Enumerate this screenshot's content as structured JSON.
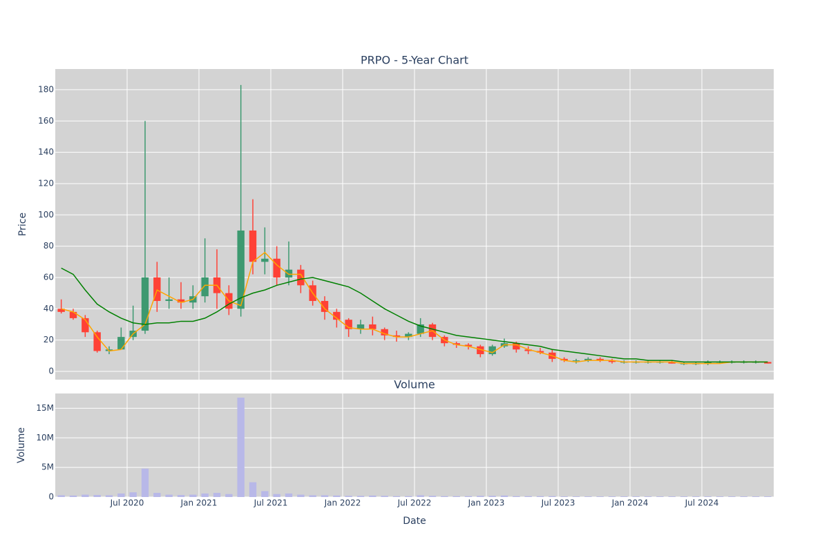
{
  "chart_data": [
    {
      "type": "candlestick",
      "title": "PRPO - 5-Year Chart",
      "y_label": "Price",
      "x": [
        "2020-01",
        "2020-02",
        "2020-03",
        "2020-04",
        "2020-05",
        "2020-06",
        "2020-07",
        "2020-08",
        "2020-09",
        "2020-10",
        "2020-11",
        "2020-12",
        "2021-01",
        "2021-02",
        "2021-03",
        "2021-04",
        "2021-05",
        "2021-06",
        "2021-07",
        "2021-08",
        "2021-09",
        "2021-10",
        "2021-11",
        "2021-12",
        "2022-01",
        "2022-02",
        "2022-03",
        "2022-04",
        "2022-05",
        "2022-06",
        "2022-07",
        "2022-08",
        "2022-09",
        "2022-10",
        "2022-11",
        "2022-12",
        "2023-01",
        "2023-02",
        "2023-03",
        "2023-04",
        "2023-05",
        "2023-06",
        "2023-07",
        "2023-08",
        "2023-09",
        "2023-10",
        "2023-11",
        "2023-12",
        "2024-01",
        "2024-02",
        "2024-03",
        "2024-04",
        "2024-05",
        "2024-06",
        "2024-07",
        "2024-08",
        "2024-09",
        "2024-10",
        "2024-11",
        "2024-12"
      ],
      "open": [
        40,
        38,
        34,
        25,
        13,
        14,
        22,
        26,
        60,
        45,
        46,
        44,
        48,
        60,
        50,
        40,
        90,
        70,
        72,
        60,
        65,
        55,
        45,
        38,
        33,
        27,
        30,
        27,
        23,
        22,
        24,
        30,
        22,
        18,
        17,
        16,
        11,
        16,
        18,
        14,
        13,
        12,
        8,
        7,
        7,
        8,
        7,
        6,
        6,
        6,
        6,
        6,
        5,
        5,
        5,
        6,
        6,
        6,
        6,
        6
      ],
      "high": [
        46,
        40,
        36,
        26,
        16,
        28,
        42,
        160,
        70,
        60,
        57,
        55,
        85,
        78,
        55,
        183,
        110,
        92,
        80,
        83,
        68,
        58,
        48,
        40,
        34,
        33,
        35,
        28,
        26,
        25,
        34,
        31,
        23,
        19,
        18,
        17,
        17,
        21,
        19,
        16,
        15,
        14,
        9,
        8,
        9,
        9,
        8,
        7,
        7,
        7,
        7,
        7,
        6,
        6,
        7,
        7,
        7,
        7,
        7,
        6
      ],
      "low": [
        37,
        33,
        22,
        12,
        11,
        14,
        20,
        24,
        38,
        40,
        40,
        40,
        44,
        40,
        36,
        35,
        62,
        62,
        55,
        55,
        50,
        42,
        33,
        28,
        22,
        24,
        23,
        20,
        19,
        20,
        22,
        20,
        16,
        15,
        14,
        9,
        10,
        15,
        12,
        11,
        11,
        6,
        6,
        5,
        6,
        6,
        5,
        5,
        5,
        5,
        5,
        5,
        4,
        4,
        4,
        5,
        5,
        5,
        5,
        5
      ],
      "close": [
        38,
        34,
        25,
        13,
        14,
        22,
        26,
        60,
        45,
        46,
        44,
        48,
        60,
        50,
        40,
        90,
        70,
        72,
        60,
        65,
        55,
        45,
        38,
        33,
        27,
        30,
        27,
        23,
        22,
        24,
        30,
        22,
        18,
        17,
        16,
        11,
        16,
        18,
        14,
        13,
        12,
        8,
        7,
        7,
        8,
        7,
        6,
        6,
        6,
        6,
        6,
        5,
        5,
        5,
        6,
        6,
        6,
        6,
        6,
        5
      ],
      "increasing_color": "#3d9970",
      "decreasing_color": "#ff4136",
      "lines": [
        {
          "color": "orange",
          "values": [
            40,
            38,
            33,
            22,
            13,
            14,
            24,
            30,
            52,
            48,
            44,
            46,
            55,
            55,
            45,
            42,
            70,
            76,
            68,
            62,
            62,
            50,
            40,
            34,
            28,
            27,
            27,
            24,
            22,
            22,
            24,
            26,
            20,
            17,
            16,
            14,
            12,
            17,
            17,
            14,
            12,
            10,
            7,
            6,
            7,
            7,
            7,
            6,
            6,
            6,
            6,
            6,
            5,
            5,
            5,
            5,
            6,
            6,
            6,
            6
          ]
        },
        {
          "color": "green",
          "values": [
            66,
            62,
            52,
            43,
            38,
            34,
            31,
            30,
            31,
            31,
            32,
            32,
            34,
            38,
            43,
            47,
            50,
            52,
            55,
            57,
            59,
            60,
            58,
            56,
            54,
            50,
            45,
            40,
            36,
            32,
            29,
            27,
            25,
            23,
            22,
            21,
            20,
            19,
            18,
            17,
            16,
            14,
            13,
            12,
            11,
            10,
            9,
            8,
            8,
            7,
            7,
            7,
            6,
            6,
            6,
            6,
            6,
            6,
            6,
            6
          ]
        }
      ],
      "xlim": [
        "2020-01",
        "2025-01"
      ],
      "xticks": [
        "2020-07",
        "2021-01",
        "2021-07",
        "2022-01",
        "2022-07",
        "2023-01",
        "2023-07",
        "2024-01",
        "2024-07"
      ],
      "ylim": [
        -5.3,
        193.2
      ],
      "yticks": [
        0,
        20,
        40,
        60,
        80,
        100,
        120,
        140,
        160,
        180
      ],
      "grid": true
    },
    {
      "type": "bar",
      "title": "Volume",
      "y_label": "Volume",
      "x_label": "Date",
      "x": [
        "2020-01",
        "2020-02",
        "2020-03",
        "2020-04",
        "2020-05",
        "2020-06",
        "2020-07",
        "2020-08",
        "2020-09",
        "2020-10",
        "2020-11",
        "2020-12",
        "2021-01",
        "2021-02",
        "2021-03",
        "2021-04",
        "2021-05",
        "2021-06",
        "2021-07",
        "2021-08",
        "2021-09",
        "2021-10",
        "2021-11",
        "2021-12",
        "2022-01",
        "2022-02",
        "2022-03",
        "2022-04",
        "2022-05",
        "2022-06",
        "2022-07",
        "2022-08",
        "2022-09",
        "2022-10",
        "2022-11",
        "2022-12",
        "2023-01",
        "2023-02",
        "2023-03",
        "2023-04",
        "2023-05",
        "2023-06",
        "2023-07",
        "2023-08",
        "2023-09",
        "2023-10",
        "2023-11",
        "2023-12",
        "2024-01",
        "2024-02",
        "2024-03",
        "2024-04",
        "2024-05",
        "2024-06",
        "2024-07",
        "2024-08",
        "2024-09",
        "2024-10",
        "2024-11",
        "2024-12"
      ],
      "values": [
        300000,
        250000,
        400000,
        350000,
        300000,
        600000,
        800000,
        4800000,
        700000,
        400000,
        350000,
        400000,
        600000,
        700000,
        500000,
        16800000,
        2500000,
        1000000,
        500000,
        600000,
        400000,
        300000,
        300000,
        250000,
        200000,
        200000,
        250000,
        200000,
        150000,
        150000,
        300000,
        200000,
        150000,
        150000,
        150000,
        200000,
        200000,
        250000,
        150000,
        150000,
        150000,
        150000,
        100000,
        100000,
        100000,
        100000,
        100000,
        100000,
        100000,
        100000,
        100000,
        100000,
        100000,
        100000,
        100000,
        100000,
        100000,
        100000,
        100000,
        100000
      ],
      "color": "#b8b8e8",
      "xlim": [
        "2020-01",
        "2025-01"
      ],
      "xticks": [
        {
          "value": "2020-07",
          "label": "Jul 2020"
        },
        {
          "value": "2021-01",
          "label": "Jan 2021"
        },
        {
          "value": "2021-07",
          "label": "Jul 2021"
        },
        {
          "value": "2022-01",
          "label": "Jan 2022"
        },
        {
          "value": "2022-07",
          "label": "Jul 2022"
        },
        {
          "value": "2023-01",
          "label": "Jan 2023"
        },
        {
          "value": "2023-07",
          "label": "Jul 2023"
        },
        {
          "value": "2024-01",
          "label": "Jan 2024"
        },
        {
          "value": "2024-07",
          "label": "Jul 2024"
        }
      ],
      "ylim": [
        0,
        17500000
      ],
      "yticks": [
        0,
        {
          "value": 5000000,
          "label": "5M"
        },
        {
          "value": 10000000,
          "label": "10M"
        },
        {
          "value": 15000000,
          "label": "15M"
        }
      ],
      "grid": true
    }
  ]
}
